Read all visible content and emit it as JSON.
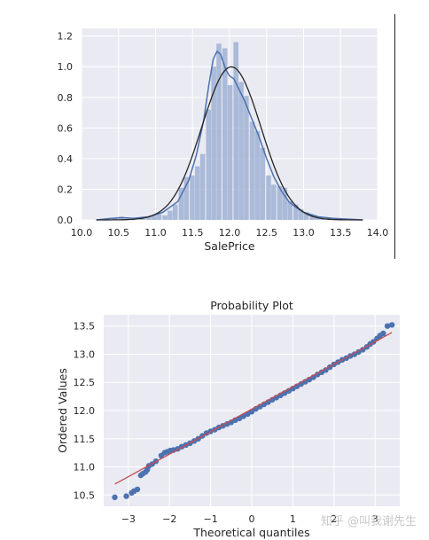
{
  "chart_data": [
    {
      "type": "histogram",
      "xlabel": "SalePrice",
      "ylabel": "",
      "xlim": [
        10.0,
        14.0
      ],
      "ylim": [
        0.0,
        1.25
      ],
      "xticks": [
        "10.0",
        "10.5",
        "11.0",
        "11.5",
        "12.0",
        "12.5",
        "13.0",
        "13.5",
        "14.0"
      ],
      "yticks": [
        "0.0",
        "0.2",
        "0.4",
        "0.6",
        "0.8",
        "1.0",
        "1.2"
      ],
      "grid": true,
      "colors": {
        "bars": "#9fb1d4",
        "kde": "#4c72b0",
        "normal_fit": "#262626",
        "background": "#eaeaf2"
      },
      "bins": {
        "x": [
          10.46,
          10.54,
          10.61,
          10.68,
          10.76,
          10.83,
          10.91,
          10.98,
          11.05,
          11.13,
          11.2,
          11.27,
          11.35,
          11.42,
          11.5,
          11.57,
          11.64,
          11.72,
          11.79,
          11.86,
          11.94,
          12.01,
          12.09,
          12.16,
          12.23,
          12.31,
          12.38,
          12.45,
          12.53,
          12.6,
          12.68,
          12.75,
          12.82,
          12.9,
          12.97,
          13.04,
          13.12,
          13.19,
          13.26,
          13.34
        ],
        "density": [
          0.01,
          0.02,
          0.01,
          0.0,
          0.0,
          0.01,
          0.02,
          0.03,
          0.04,
          0.03,
          0.06,
          0.1,
          0.21,
          0.28,
          0.29,
          0.35,
          0.43,
          0.72,
          1.0,
          1.15,
          1.12,
          0.88,
          1.16,
          0.9,
          0.81,
          0.64,
          0.58,
          0.47,
          0.29,
          0.23,
          0.22,
          0.21,
          0.12,
          0.1,
          0.07,
          0.05,
          0.03,
          0.02,
          0.01,
          0.01
        ]
      },
      "kde": {
        "x": [
          10.2,
          10.4,
          10.55,
          10.7,
          10.9,
          11.1,
          11.3,
          11.45,
          11.55,
          11.65,
          11.72,
          11.78,
          11.83,
          11.88,
          11.95,
          12.0,
          12.06,
          12.12,
          12.2,
          12.3,
          12.4,
          12.5,
          12.6,
          12.7,
          12.8,
          12.9,
          13.0,
          13.2,
          13.4,
          13.6,
          13.8
        ],
        "y": [
          0.0,
          0.01,
          0.015,
          0.01,
          0.02,
          0.05,
          0.12,
          0.26,
          0.42,
          0.65,
          0.88,
          1.05,
          1.1,
          1.08,
          0.98,
          0.94,
          0.92,
          0.86,
          0.78,
          0.66,
          0.54,
          0.4,
          0.28,
          0.19,
          0.12,
          0.08,
          0.05,
          0.02,
          0.01,
          0.005,
          0.0
        ]
      },
      "normal_fit": {
        "mean": 12.024,
        "std": 0.3994
      }
    },
    {
      "type": "scatter",
      "title": "Probability Plot",
      "xlabel": "Theoretical quantiles",
      "ylabel": "Ordered Values",
      "xlim": [
        -3.6,
        3.6
      ],
      "ylim": [
        10.3,
        13.7
      ],
      "xticks": [
        "−3",
        "−2",
        "−1",
        "0",
        "1",
        "2",
        "3"
      ],
      "yticks": [
        "10.5",
        "11.0",
        "11.5",
        "12.0",
        "12.5",
        "13.0",
        "13.5"
      ],
      "grid": true,
      "colors": {
        "points": "#4c72b0",
        "fit_line": "#c44e52",
        "background": "#eaeaf2"
      },
      "fit_line": {
        "slope": 0.3993,
        "intercept": 12.024
      },
      "points": {
        "x": [
          -3.33,
          -3.05,
          -2.92,
          -2.86,
          -2.78,
          -2.7,
          -2.65,
          -2.58,
          -2.54,
          -2.5,
          -2.42,
          -2.33,
          -2.2,
          -2.12,
          -2.05,
          -1.98,
          -1.9,
          -1.8,
          -1.7,
          -1.6,
          -1.5,
          -1.4,
          -1.3,
          -1.2,
          -1.1,
          -1.0,
          -0.9,
          -0.8,
          -0.7,
          -0.6,
          -0.5,
          -0.4,
          -0.3,
          -0.2,
          -0.1,
          0.0,
          0.1,
          0.2,
          0.3,
          0.4,
          0.5,
          0.6,
          0.7,
          0.8,
          0.9,
          1.0,
          1.1,
          1.2,
          1.3,
          1.4,
          1.5,
          1.6,
          1.7,
          1.8,
          1.9,
          2.0,
          2.1,
          2.2,
          2.3,
          2.4,
          2.5,
          2.6,
          2.7,
          2.8,
          2.88,
          2.96,
          3.05,
          3.12,
          3.2,
          3.3,
          3.41
        ],
        "y": [
          10.46,
          10.48,
          10.54,
          10.57,
          10.6,
          10.85,
          10.88,
          10.91,
          10.95,
          11.02,
          11.05,
          11.1,
          11.2,
          11.25,
          11.27,
          11.29,
          11.3,
          11.32,
          11.36,
          11.39,
          11.42,
          11.46,
          11.5,
          11.55,
          11.6,
          11.63,
          11.66,
          11.7,
          11.73,
          11.76,
          11.79,
          11.83,
          11.86,
          11.9,
          11.94,
          11.98,
          12.03,
          12.07,
          12.11,
          12.15,
          12.19,
          12.23,
          12.27,
          12.31,
          12.35,
          12.39,
          12.43,
          12.47,
          12.51,
          12.55,
          12.59,
          12.64,
          12.68,
          12.72,
          12.77,
          12.82,
          12.86,
          12.9,
          12.93,
          12.97,
          13.0,
          13.04,
          13.08,
          13.13,
          13.18,
          13.22,
          13.28,
          13.33,
          13.37,
          13.5,
          13.52
        ]
      }
    }
  ],
  "watermark": "知乎 @叫我谢先生"
}
